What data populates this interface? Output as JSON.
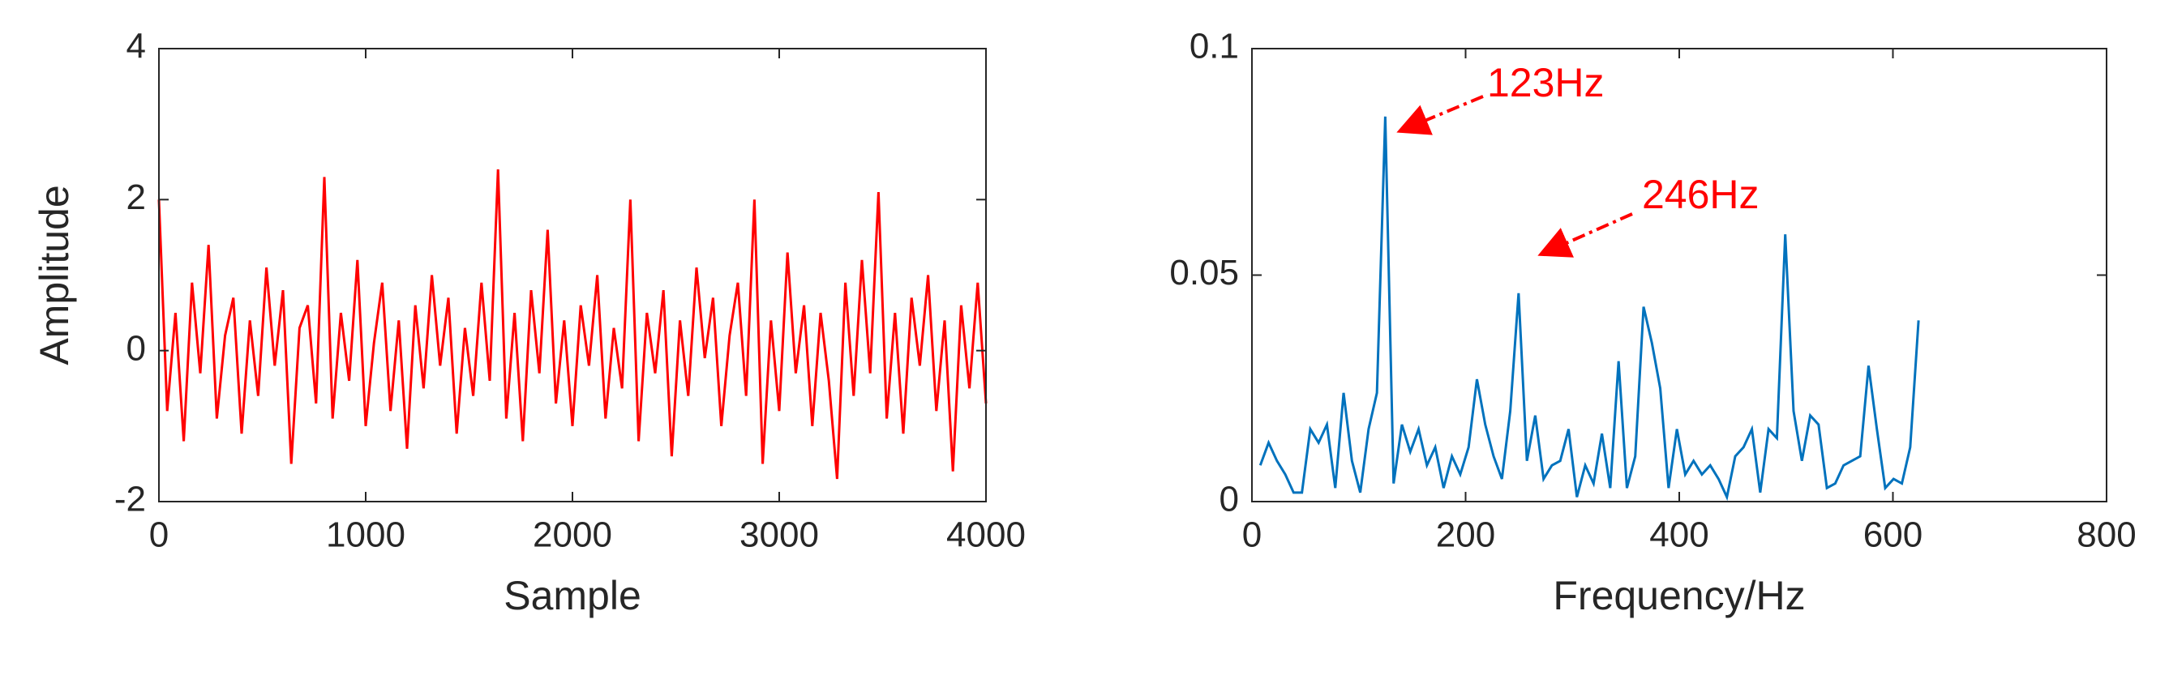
{
  "chart_data": [
    {
      "type": "line",
      "xlabel": "Sample",
      "ylabel": "Amplitude",
      "xlim": [
        0,
        4000
      ],
      "xticks": [
        0,
        1000,
        2000,
        3000,
        4000
      ],
      "ylim": [
        -2,
        4
      ],
      "yticks": [
        -2,
        0,
        2,
        4
      ],
      "grid": false,
      "series": [
        {
          "color": "#ff0000",
          "x": [
            0,
            40,
            80,
            120,
            160,
            200,
            240,
            280,
            320,
            360,
            400,
            440,
            480,
            520,
            560,
            600,
            640,
            680,
            720,
            760,
            800,
            840,
            880,
            920,
            960,
            1000,
            1040,
            1080,
            1120,
            1160,
            1200,
            1240,
            1280,
            1320,
            1360,
            1400,
            1440,
            1480,
            1520,
            1560,
            1600,
            1640,
            1680,
            1720,
            1760,
            1800,
            1840,
            1880,
            1920,
            1960,
            2000,
            2040,
            2080,
            2120,
            2160,
            2200,
            2240,
            2280,
            2320,
            2360,
            2400,
            2440,
            2480,
            2520,
            2560,
            2600,
            2640,
            2680,
            2720,
            2760,
            2800,
            2840,
            2880,
            2920,
            2960,
            3000,
            3040,
            3080,
            3120,
            3160,
            3200,
            3240,
            3280,
            3320,
            3360,
            3400,
            3440,
            3480,
            3520,
            3560,
            3600,
            3640,
            3680,
            3720,
            3760,
            3800,
            3840,
            3880,
            3920,
            3960,
            4000
          ],
          "values": [
            2.0,
            -0.8,
            0.5,
            -1.2,
            0.9,
            -0.3,
            1.4,
            -0.9,
            0.2,
            0.7,
            -1.1,
            0.4,
            -0.6,
            1.1,
            -0.2,
            0.8,
            -1.5,
            0.3,
            0.6,
            -0.7,
            2.3,
            -0.9,
            0.5,
            -0.4,
            1.2,
            -1.0,
            0.1,
            0.9,
            -0.8,
            0.4,
            -1.3,
            0.6,
            -0.5,
            1.0,
            -0.2,
            0.7,
            -1.1,
            0.3,
            -0.6,
            0.9,
            -0.4,
            2.4,
            -0.9,
            0.5,
            -1.2,
            0.8,
            -0.3,
            1.6,
            -0.7,
            0.4,
            -1.0,
            0.6,
            -0.2,
            1.0,
            -0.9,
            0.3,
            -0.5,
            2.0,
            -1.2,
            0.5,
            -0.3,
            0.8,
            -1.4,
            0.4,
            -0.6,
            1.1,
            -0.1,
            0.7,
            -1.0,
            0.2,
            0.9,
            -0.6,
            2.0,
            -1.5,
            0.4,
            -0.8,
            1.3,
            -0.3,
            0.6,
            -1.0,
            0.5,
            -0.4,
            -1.7,
            0.9,
            -0.6,
            1.2,
            -0.3,
            2.1,
            -0.9,
            0.5,
            -1.1,
            0.7,
            -0.2,
            1.0,
            -0.8,
            0.4,
            -1.6,
            0.6,
            -0.5,
            0.9,
            -0.7
          ]
        }
      ]
    },
    {
      "type": "line",
      "xlabel": "Frequency/Hz",
      "xlim": [
        0,
        800
      ],
      "xticks": [
        0,
        200,
        400,
        600,
        800
      ],
      "ylim": [
        0,
        0.1
      ],
      "yticks": [
        0,
        0.05,
        0.1
      ],
      "grid": false,
      "annotations": [
        {
          "text": "123Hz",
          "color": "#ff0000"
        },
        {
          "text": "246Hz",
          "color": "#ff0000"
        }
      ],
      "series": [
        {
          "color": "#0072bd",
          "x": [
            7.8,
            15.6,
            23.4,
            31.2,
            39,
            46.8,
            54.6,
            62.4,
            70.2,
            78,
            85.8,
            93.6,
            101.4,
            109.2,
            117,
            124.8,
            132.6,
            140.4,
            148.2,
            156,
            163.8,
            171.6,
            179.4,
            187.2,
            195,
            202.8,
            210.6,
            218.4,
            226.2,
            234,
            241.8,
            249.6,
            257.4,
            265.2,
            273,
            280.8,
            288.6,
            296.4,
            304.2,
            312,
            319.8,
            327.6,
            335.4,
            343.2,
            351,
            358.8,
            366.6,
            374.4,
            382.2,
            390,
            397.8,
            405.6,
            413.4,
            421.2,
            429,
            436.8,
            444.6,
            452.4,
            460.2,
            468,
            475.8,
            483.6,
            491.4,
            499.2,
            507,
            514.8,
            522.6,
            530.4,
            538.2,
            546,
            553.8,
            561.6,
            569.4,
            577.2,
            585,
            592.8,
            600.6,
            608.4,
            616.2,
            624
          ],
          "values": [
            0.008,
            0.013,
            0.009,
            0.006,
            0.002,
            0.002,
            0.016,
            0.013,
            0.017,
            0.003,
            0.024,
            0.009,
            0.002,
            0.016,
            0.024,
            0.085,
            0.004,
            0.017,
            0.011,
            0.016,
            0.008,
            0.012,
            0.003,
            0.01,
            0.006,
            0.012,
            0.027,
            0.017,
            0.01,
            0.005,
            0.02,
            0.046,
            0.009,
            0.019,
            0.005,
            0.008,
            0.009,
            0.016,
            0.001,
            0.008,
            0.004,
            0.015,
            0.003,
            0.031,
            0.003,
            0.01,
            0.043,
            0.035,
            0.025,
            0.003,
            0.016,
            0.006,
            0.009,
            0.006,
            0.008,
            0.005,
            0.001,
            0.01,
            0.012,
            0.016,
            0.002,
            0.016,
            0.014,
            0.059,
            0.02,
            0.009,
            0.019,
            0.017,
            0.003,
            0.004,
            0.008,
            0.009,
            0.01,
            0.03,
            0.016,
            0.003,
            0.005,
            0.004,
            0.012,
            0.04
          ]
        }
      ]
    }
  ]
}
